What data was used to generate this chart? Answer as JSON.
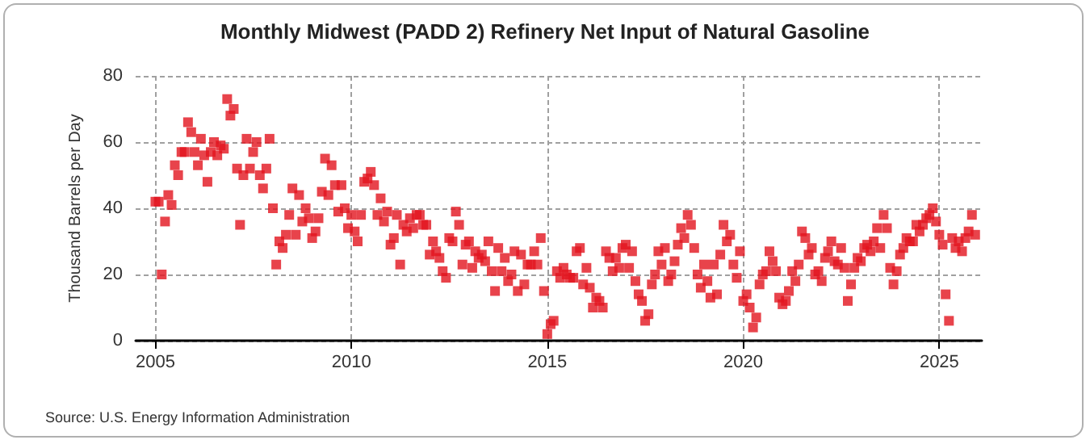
{
  "chart_data": {
    "type": "scatter",
    "title": "Monthly Midwest (PADD 2) Refinery Net Input of Natural Gasoline",
    "ylabel": "Thousand Barrels per Day",
    "annotations": [
      "Source: U.S. Energy Information Administration"
    ],
    "x": [
      "2005-01",
      "2005-02",
      "2005-03",
      "2005-04",
      "2005-05",
      "2005-06",
      "2005-07",
      "2005-08",
      "2005-09",
      "2005-10",
      "2005-11",
      "2005-12",
      "2006-01",
      "2006-02",
      "2006-03",
      "2006-04",
      "2006-05",
      "2006-06",
      "2006-07",
      "2006-08",
      "2006-09",
      "2006-10",
      "2006-11",
      "2006-12",
      "2007-01",
      "2007-02",
      "2007-03",
      "2007-04",
      "2007-05",
      "2007-06",
      "2007-07",
      "2007-08",
      "2007-09",
      "2007-10",
      "2007-11",
      "2007-12",
      "2008-01",
      "2008-02",
      "2008-03",
      "2008-04",
      "2008-05",
      "2008-06",
      "2008-07",
      "2008-08",
      "2008-09",
      "2008-10",
      "2008-11",
      "2008-12",
      "2009-01",
      "2009-02",
      "2009-03",
      "2009-04",
      "2009-05",
      "2009-06",
      "2009-07",
      "2009-08",
      "2009-09",
      "2009-10",
      "2009-11",
      "2009-12",
      "2010-01",
      "2010-02",
      "2010-03",
      "2010-04",
      "2010-05",
      "2010-06",
      "2010-07",
      "2010-08",
      "2010-09",
      "2010-10",
      "2010-11",
      "2010-12",
      "2011-01",
      "2011-02",
      "2011-03",
      "2011-04",
      "2011-05",
      "2011-06",
      "2011-07",
      "2011-08",
      "2011-09",
      "2011-10",
      "2011-11",
      "2011-12",
      "2012-01",
      "2012-02",
      "2012-03",
      "2012-04",
      "2012-05",
      "2012-06",
      "2012-07",
      "2012-08",
      "2012-09",
      "2012-10",
      "2012-11",
      "2012-12",
      "2013-01",
      "2013-02",
      "2013-03",
      "2013-04",
      "2013-05",
      "2013-06",
      "2013-07",
      "2013-08",
      "2013-09",
      "2013-10",
      "2013-11",
      "2013-12",
      "2014-01",
      "2014-02",
      "2014-03",
      "2014-04",
      "2014-05",
      "2014-06",
      "2014-07",
      "2014-08",
      "2014-09",
      "2014-10",
      "2014-11",
      "2014-12",
      "2015-01",
      "2015-02",
      "2015-03",
      "2015-04",
      "2015-05",
      "2015-06",
      "2015-07",
      "2015-08",
      "2015-09",
      "2015-10",
      "2015-11",
      "2015-12",
      "2016-01",
      "2016-02",
      "2016-03",
      "2016-04",
      "2016-05",
      "2016-06",
      "2016-07",
      "2016-08",
      "2016-09",
      "2016-10",
      "2016-11",
      "2016-12",
      "2017-01",
      "2017-02",
      "2017-03",
      "2017-04",
      "2017-05",
      "2017-06",
      "2017-07",
      "2017-08",
      "2017-09",
      "2017-10",
      "2017-11",
      "2017-12",
      "2018-01",
      "2018-02",
      "2018-03",
      "2018-04",
      "2018-05",
      "2018-06",
      "2018-07",
      "2018-08",
      "2018-09",
      "2018-10",
      "2018-11",
      "2018-12",
      "2019-01",
      "2019-02",
      "2019-03",
      "2019-04",
      "2019-05",
      "2019-06",
      "2019-07",
      "2019-08",
      "2019-09",
      "2019-10",
      "2019-11",
      "2019-12",
      "2020-01",
      "2020-02",
      "2020-03",
      "2020-04",
      "2020-05",
      "2020-06",
      "2020-07",
      "2020-08",
      "2020-09",
      "2020-10",
      "2020-11",
      "2020-12",
      "2021-01",
      "2021-02",
      "2021-03",
      "2021-04",
      "2021-05",
      "2021-06",
      "2021-07",
      "2021-08",
      "2021-09",
      "2021-10",
      "2021-11",
      "2021-12",
      "2022-01",
      "2022-02",
      "2022-03",
      "2022-04",
      "2022-05",
      "2022-06",
      "2022-07",
      "2022-08",
      "2022-09",
      "2022-10",
      "2022-11",
      "2022-12",
      "2023-01",
      "2023-02",
      "2023-03",
      "2023-04",
      "2023-05",
      "2023-06",
      "2023-07",
      "2023-08",
      "2023-09",
      "2023-10",
      "2023-11",
      "2023-12",
      "2024-01",
      "2024-02",
      "2024-03",
      "2024-04",
      "2024-05",
      "2024-06",
      "2024-07",
      "2024-08",
      "2024-09",
      "2024-10",
      "2024-11",
      "2024-12",
      "2025-01",
      "2025-02",
      "2025-03",
      "2025-04",
      "2025-05",
      "2025-06",
      "2025-07",
      "2025-08",
      "2025-09",
      "2025-10",
      "2025-11",
      "2025-12"
    ],
    "series": [
      {
        "color": "#e2141e",
        "values": [
          42,
          42,
          20,
          36,
          44,
          41,
          53,
          50,
          57,
          57,
          66,
          63,
          57,
          53,
          61,
          56,
          48,
          57,
          60,
          56,
          59,
          58,
          73,
          68,
          70,
          52,
          35,
          50,
          61,
          52,
          57,
          60,
          50,
          46,
          52,
          61,
          40,
          23,
          30,
          28,
          32,
          38,
          46,
          32,
          44,
          36,
          40,
          37,
          31,
          33,
          37,
          45,
          55,
          44,
          53,
          47,
          39,
          47,
          40,
          34,
          38,
          33,
          30,
          38,
          48,
          49,
          51,
          47,
          38,
          43,
          36,
          39,
          29,
          31,
          38,
          23,
          35,
          33,
          37,
          34,
          38,
          38,
          35,
          35,
          26,
          30,
          27,
          25,
          21,
          19,
          31,
          30,
          39,
          35,
          23,
          29,
          30,
          22,
          27,
          25,
          26,
          24,
          30,
          21,
          15,
          28,
          21,
          25,
          18,
          20,
          27,
          15,
          26,
          17,
          23,
          23,
          27,
          23,
          31,
          15,
          2,
          5,
          6,
          21,
          19,
          22,
          20,
          19,
          19,
          27,
          28,
          17,
          22,
          16,
          10,
          13,
          12,
          10,
          27,
          25,
          21,
          25,
          22,
          28,
          29,
          22,
          27,
          18,
          14,
          12,
          6,
          8,
          17,
          20,
          27,
          23,
          28,
          18,
          20,
          24,
          29,
          34,
          31,
          38,
          35,
          28,
          20,
          16,
          23,
          18,
          13,
          23,
          14,
          26,
          35,
          30,
          32,
          23,
          19,
          27,
          12,
          14,
          10,
          4,
          7,
          17,
          20,
          21,
          27,
          24,
          21,
          13,
          11,
          12,
          15,
          21,
          18,
          23,
          33,
          31,
          26,
          28,
          20,
          21,
          18,
          25,
          27,
          30,
          24,
          23,
          28,
          22,
          12,
          17,
          22,
          25,
          24,
          28,
          29,
          27,
          30,
          34,
          28,
          38,
          34,
          22,
          17,
          21,
          26,
          28,
          31,
          30,
          30,
          35,
          33,
          35,
          37,
          38,
          40,
          36,
          32,
          29,
          14,
          6,
          31,
          28,
          30,
          27,
          31,
          33,
          38,
          32
        ]
      }
    ],
    "xlim": [
      "2004-07",
      "2026-02"
    ],
    "xticks": [
      "2005",
      "2010",
      "2015",
      "2020",
      "2025"
    ],
    "ylim": [
      0,
      80
    ],
    "yticks": [
      0,
      20,
      40,
      60,
      80
    ],
    "grid": true,
    "marker": "square"
  }
}
